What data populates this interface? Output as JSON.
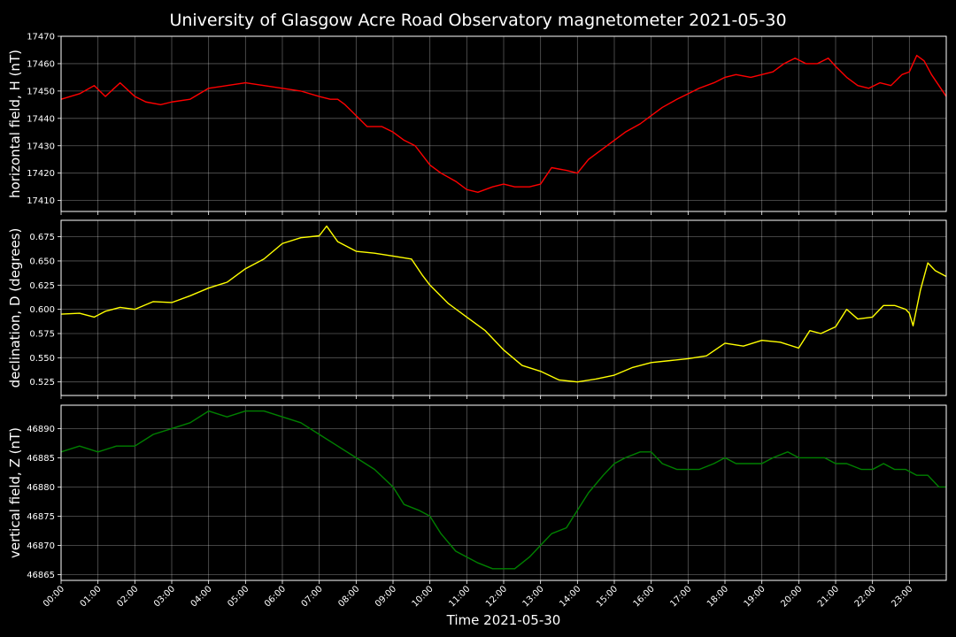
{
  "title": "University of Glasgow Acre Road Observatory magnetometer 2021-05-30",
  "xlabel": "Time 2021-05-30",
  "x_tick_labels": [
    "00:00",
    "01:00",
    "02:00",
    "03:00",
    "04:00",
    "05:00",
    "06:00",
    "07:00",
    "08:00",
    "09:00",
    "10:00",
    "11:00",
    "12:00",
    "13:00",
    "14:00",
    "15:00",
    "16:00",
    "17:00",
    "18:00",
    "19:00",
    "20:00",
    "21:00",
    "22:00",
    "23:00"
  ],
  "chart_data": [
    {
      "type": "line",
      "ylabel": "horizontal field, H (nT)",
      "color": "#ff0000",
      "xlim": [
        0,
        24
      ],
      "ylim": [
        17406,
        17470
      ],
      "yticks": [
        17410,
        17420,
        17430,
        17440,
        17450,
        17460,
        17470
      ],
      "ytick_labels": [
        "17410",
        "17420",
        "17430",
        "17440",
        "17450",
        "17460",
        "17470"
      ],
      "grid": true,
      "series": [
        {
          "x": [
            0,
            0.5,
            0.9,
            1.2,
            1.6,
            2.0,
            2.3,
            2.7,
            3.0,
            3.5,
            4.0,
            4.5,
            5.0,
            5.5,
            6.0,
            6.5,
            7.0,
            7.3,
            7.5,
            7.7,
            8.0,
            8.3,
            8.7,
            9.0,
            9.3,
            9.6,
            10.0,
            10.3,
            10.7,
            11.0,
            11.3,
            11.7,
            12.0,
            12.3,
            12.7,
            13.0,
            13.3,
            13.7,
            14.0,
            14.3,
            14.7,
            15.0,
            15.3,
            15.7,
            16.0,
            16.3,
            16.7,
            17.0,
            17.3,
            17.7,
            18.0,
            18.3,
            18.7,
            19.0,
            19.3,
            19.6,
            19.9,
            20.2,
            20.5,
            20.8,
            21.0,
            21.3,
            21.6,
            21.9,
            22.2,
            22.5,
            22.8,
            23.0,
            23.2,
            23.4,
            23.6,
            23.8,
            24.0
          ],
          "y": [
            17447,
            17449,
            17452,
            17448,
            17453,
            17448,
            17446,
            17445,
            17446,
            17447,
            17451,
            17452,
            17453,
            17452,
            17451,
            17450,
            17448,
            17447,
            17447,
            17445,
            17441,
            17437,
            17437,
            17435,
            17432,
            17430,
            17423,
            17420,
            17417,
            17414,
            17413,
            17415,
            17416,
            17415,
            17415,
            17416,
            17422,
            17421,
            17420,
            17425,
            17429,
            17432,
            17435,
            17438,
            17441,
            17444,
            17447,
            17449,
            17451,
            17453,
            17455,
            17456,
            17455,
            17456,
            17457,
            17460,
            17462,
            17460,
            17460,
            17462,
            17459,
            17455,
            17452,
            17451,
            17453,
            17452,
            17456,
            17457,
            17463,
            17461,
            17456,
            17452,
            17448
          ]
        }
      ]
    },
    {
      "type": "line",
      "ylabel": "declination, D (degrees)",
      "color": "#ffff00",
      "xlim": [
        0,
        24
      ],
      "ylim": [
        0.511,
        0.692
      ],
      "yticks": [
        0.525,
        0.55,
        0.575,
        0.6,
        0.625,
        0.65,
        0.675
      ],
      "ytick_labels": [
        "0.525",
        "0.550",
        "0.575",
        "0.600",
        "0.625",
        "0.650",
        "0.675"
      ],
      "grid": true,
      "series": [
        {
          "x": [
            0,
            0.5,
            0.9,
            1.2,
            1.6,
            2.0,
            2.5,
            3.0,
            3.5,
            4.0,
            4.5,
            5.0,
            5.5,
            6.0,
            6.5,
            7.0,
            7.2,
            7.5,
            8.0,
            8.5,
            9.0,
            9.5,
            9.8,
            10.0,
            10.5,
            11.0,
            11.5,
            12.0,
            12.5,
            13.0,
            13.5,
            14.0,
            14.5,
            15.0,
            15.5,
            16.0,
            16.5,
            17.0,
            17.5,
            18.0,
            18.5,
            19.0,
            19.5,
            20.0,
            20.3,
            20.6,
            21.0,
            21.3,
            21.6,
            22.0,
            22.3,
            22.6,
            22.9,
            23.0,
            23.1,
            23.3,
            23.5,
            23.7,
            24.0
          ],
          "y": [
            0.595,
            0.596,
            0.592,
            0.598,
            0.602,
            0.6,
            0.608,
            0.607,
            0.614,
            0.622,
            0.628,
            0.642,
            0.652,
            0.668,
            0.674,
            0.676,
            0.686,
            0.67,
            0.66,
            0.658,
            0.655,
            0.652,
            0.635,
            0.625,
            0.606,
            0.592,
            0.578,
            0.558,
            0.542,
            0.536,
            0.527,
            0.525,
            0.528,
            0.532,
            0.54,
            0.545,
            0.547,
            0.549,
            0.552,
            0.565,
            0.562,
            0.568,
            0.566,
            0.56,
            0.578,
            0.575,
            0.582,
            0.6,
            0.59,
            0.592,
            0.604,
            0.604,
            0.6,
            0.596,
            0.583,
            0.62,
            0.648,
            0.64,
            0.634
          ]
        }
      ]
    },
    {
      "type": "line",
      "ylabel": "vertical field, Z (nT)",
      "color": "#008000",
      "xlim": [
        0,
        24
      ],
      "ylim": [
        46864,
        46894
      ],
      "yticks": [
        46865,
        46870,
        46875,
        46880,
        46885,
        46890
      ],
      "ytick_labels": [
        "46865",
        "46870",
        "46875",
        "46880",
        "46885",
        "46890"
      ],
      "grid": true,
      "series": [
        {
          "x": [
            0,
            0.5,
            1.0,
            1.5,
            2.0,
            2.5,
            3.0,
            3.5,
            4.0,
            4.5,
            5.0,
            5.5,
            6.0,
            6.5,
            7.0,
            7.5,
            8.0,
            8.5,
            9.0,
            9.3,
            9.7,
            10.0,
            10.3,
            10.7,
            11.0,
            11.3,
            11.7,
            12.0,
            12.3,
            12.7,
            13.0,
            13.3,
            13.7,
            14.0,
            14.3,
            14.7,
            15.0,
            15.3,
            15.7,
            16.0,
            16.3,
            16.7,
            17.0,
            17.3,
            17.7,
            18.0,
            18.3,
            18.7,
            19.0,
            19.3,
            19.7,
            20.0,
            20.3,
            20.7,
            21.0,
            21.3,
            21.7,
            22.0,
            22.3,
            22.6,
            22.9,
            23.2,
            23.5,
            23.8,
            24.0
          ],
          "y": [
            46886,
            46887,
            46886,
            46887,
            46887,
            46889,
            46890,
            46891,
            46893,
            46892,
            46893,
            46893,
            46892,
            46891,
            46889,
            46887,
            46885,
            46883,
            46880,
            46877,
            46876,
            46875,
            46872,
            46869,
            46868,
            46867,
            46866,
            46866,
            46866,
            46868,
            46870,
            46872,
            46873,
            46876,
            46879,
            46882,
            46884,
            46885,
            46886,
            46886,
            46884,
            46883,
            46883,
            46883,
            46884,
            46885,
            46884,
            46884,
            46884,
            46885,
            46886,
            46885,
            46885,
            46885,
            46884,
            46884,
            46883,
            46883,
            46884,
            46883,
            46883,
            46882,
            46882,
            46880,
            46880
          ]
        }
      ]
    }
  ]
}
